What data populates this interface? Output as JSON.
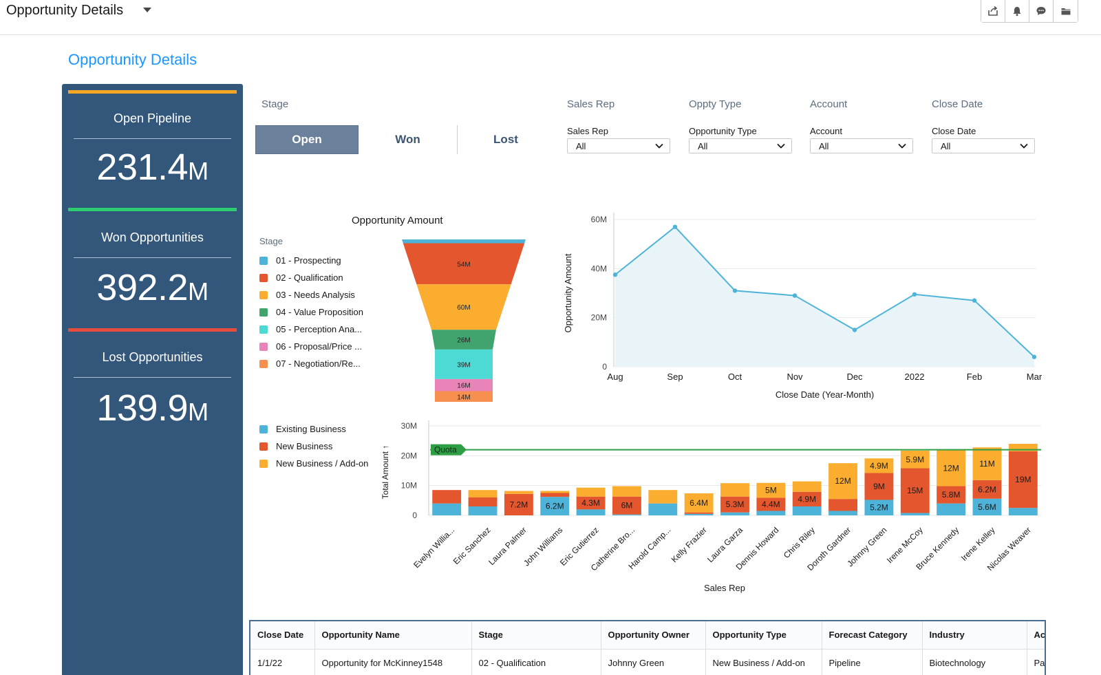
{
  "header": {
    "title": "Opportunity Details",
    "tools": [
      "share-icon",
      "bell-icon",
      "chat-icon",
      "folder-icon"
    ]
  },
  "page_title": "Opportunity Details",
  "kpis": [
    {
      "label": "Open Pipeline",
      "value": "231.4",
      "unit": "M",
      "color": "#f5a623"
    },
    {
      "label": "Won Opportunities",
      "value": "392.2",
      "unit": "M",
      "color": "#2ecc71"
    },
    {
      "label": "Lost Opportunities",
      "value": "139.9",
      "unit": "M",
      "color": "#e74c3c"
    }
  ],
  "filters": {
    "stage_label": "Stage",
    "stage_options": [
      "Open",
      "Won",
      "Lost"
    ],
    "stage_selected": "Open",
    "dropdowns": [
      {
        "section": "Sales Rep",
        "caption": "Sales Rep",
        "value": "All"
      },
      {
        "section": "Oppty Type",
        "caption": "Opportunity Type",
        "value": "All"
      },
      {
        "section": "Account",
        "caption": "Account",
        "value": "All"
      },
      {
        "section": "Close Date",
        "caption": "Close Date",
        "value": "All"
      }
    ]
  },
  "stage_legend": {
    "title": "Stage",
    "items": [
      {
        "label": "01 - Prospecting",
        "color": "#4db3d8"
      },
      {
        "label": "02 - Qualification",
        "color": "#e4572e"
      },
      {
        "label": "03 - Needs Analysis",
        "color": "#fbad2f"
      },
      {
        "label": "04 - Value Proposition",
        "color": "#41a36e"
      },
      {
        "label": "05 - Perception Ana...",
        "color": "#4dd9d4"
      },
      {
        "label": "06 - Proposal/Price ...",
        "color": "#e884b7"
      },
      {
        "label": "07 - Negotiation/Re...",
        "color": "#f78f4f"
      }
    ]
  },
  "type_legend": {
    "items": [
      {
        "label": "Existing Business",
        "color": "#4db3d8"
      },
      {
        "label": "New Business",
        "color": "#e4572e"
      },
      {
        "label": "New Business / Add-on",
        "color": "#fbad2f"
      }
    ]
  },
  "chart_data": [
    {
      "type": "funnel",
      "title": "Opportunity Amount",
      "stages": [
        "01 - Prospecting",
        "02 - Qualification",
        "03 - Needs Analysis",
        "04 - Value Proposition",
        "05 - Perception Ana...",
        "06 - Proposal/Price ...",
        "07 - Negotiation/Re..."
      ],
      "values": [
        5,
        54,
        60,
        26,
        39,
        16,
        14
      ],
      "labels": [
        "",
        "54M",
        "60M",
        "26M",
        "39M",
        "16M",
        "14M"
      ],
      "colors": [
        "#4db3d8",
        "#e4572e",
        "#fbad2f",
        "#41a36e",
        "#4dd9d4",
        "#e884b7",
        "#f78f4f"
      ]
    },
    {
      "type": "area",
      "title": "",
      "x": [
        "Aug",
        "Sep",
        "Oct",
        "Nov",
        "Dec",
        "2022",
        "Feb",
        "Mar"
      ],
      "values": [
        37.5,
        57,
        31,
        29,
        15,
        29.5,
        27,
        4
      ],
      "xlabel": "Close Date (Year-Month)",
      "ylabel": "Opportunity Amount",
      "ylim": [
        0,
        60
      ],
      "yticks": [
        0,
        20,
        40,
        60
      ],
      "ytick_labels": [
        "0",
        "20M",
        "40M",
        "60M"
      ],
      "color": "#4db3d8"
    },
    {
      "type": "bar",
      "stacked": true,
      "categories": [
        "Evelyn Willia...",
        "Eric Sanchez",
        "Laura Palmer",
        "John Williams",
        "Eric Gutierrez",
        "Catherine Bro...",
        "Harold Camp...",
        "Kelly Frazier",
        "Laura Garza",
        "Dennis Howard",
        "Chris Riley",
        "Doroth Gardner",
        "Johnny Green",
        "Irene McCoy",
        "Bruce Kennedy",
        "Irene Kelley",
        "Nicolas Weaver"
      ],
      "series": [
        {
          "name": "Existing Business",
          "color": "#4db3d8",
          "values": [
            4,
            3,
            0,
            6.2,
            2,
            0.3,
            4,
            0.5,
            1,
            1.5,
            3,
            1.5,
            5.2,
            0.8,
            4,
            5.6,
            2.5
          ]
        },
        {
          "name": "New Business",
          "color": "#e4572e",
          "values": [
            4.5,
            3,
            7.2,
            1.3,
            4.3,
            6,
            0,
            0.5,
            5.3,
            4.4,
            4.9,
            4,
            9,
            15,
            5.8,
            6.2,
            19
          ]
        },
        {
          "name": "New Business / Add-on",
          "color": "#fbad2f",
          "values": [
            0,
            2.5,
            1,
            0.7,
            3,
            3.5,
            4.5,
            6.4,
            4.5,
            5,
            3.5,
            12,
            4.9,
            5.9,
            12,
            11,
            2.5
          ]
        }
      ],
      "data_labels": [
        [
          "",
          "",
          "",
          "6.2M",
          "",
          "",
          "",
          "",
          "",
          "",
          "",
          "",
          "5.2M",
          "",
          "",
          "5.6M",
          ""
        ],
        [
          "",
          "",
          "7.2M",
          "",
          "4.3M",
          "6M",
          "",
          "",
          "5.3M",
          "4.4M",
          "4.9M",
          "",
          "9M",
          "15M",
          "5.8M",
          "6.2M",
          "19M"
        ],
        [
          "",
          "",
          "",
          "",
          "",
          "",
          "",
          "6.4M",
          "",
          "5M",
          "",
          "12M",
          "4.9M",
          "5.9M",
          "12M",
          "11M",
          ""
        ]
      ],
      "quota": {
        "label": "Quota",
        "value": 22,
        "color": "#2e9e44"
      },
      "xlabel": "Sales Rep",
      "ylabel": "Total Amount ↑",
      "ylim": [
        0,
        30
      ],
      "yticks": [
        0,
        10,
        20,
        30
      ],
      "ytick_labels": [
        "0",
        "10M",
        "20M",
        "30M"
      ]
    }
  ],
  "table": {
    "columns": [
      "Close Date",
      "Opportunity Name",
      "Stage",
      "Opportunity Owner",
      "Opportunity Type",
      "Forecast Category",
      "Industry",
      "Account"
    ],
    "rows": [
      [
        "1/1/22",
        "Opportunity for McKinney1548",
        "02 - Qualification",
        "Johnny Green",
        "New Business / Add-on",
        "Pipeline",
        "Biotechnology",
        "Par"
      ]
    ]
  }
}
